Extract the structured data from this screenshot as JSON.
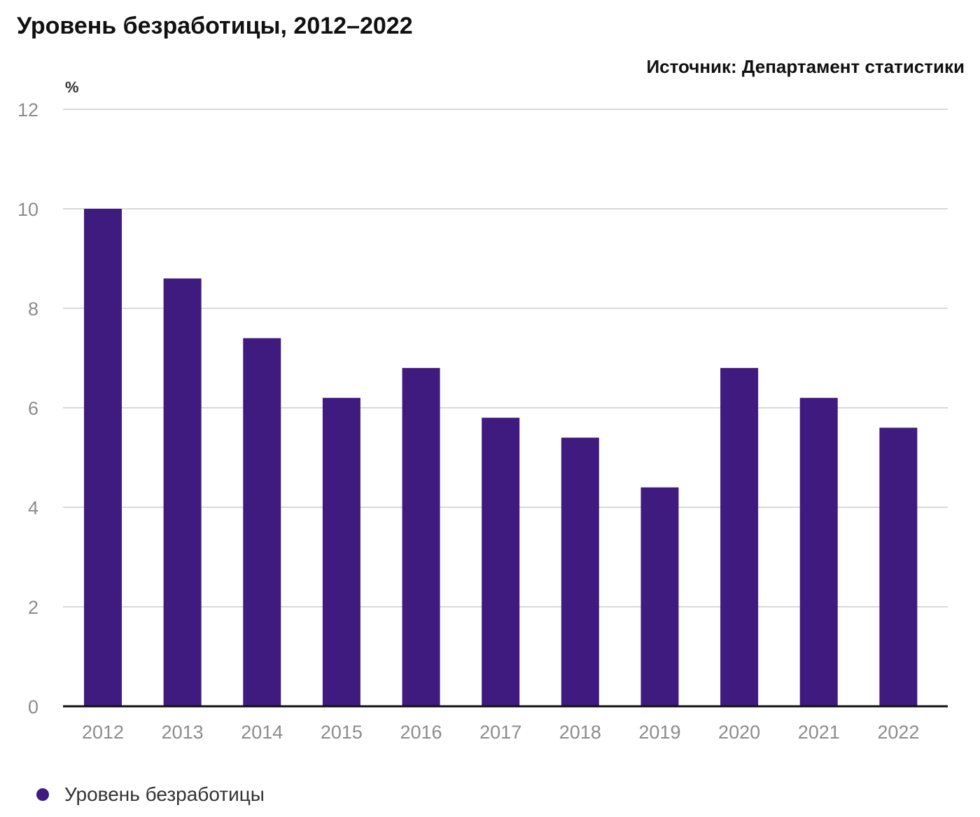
{
  "title": "Уровень безработицы, 2012–2022",
  "source": "Источник: Департамент статистики",
  "colors": {
    "bar": "#3f1a7f",
    "grid": "#d9d9d9",
    "axis": "#111111",
    "tick_text": "#8c8c8c"
  },
  "chart_data": {
    "type": "bar",
    "categories": [
      "2012",
      "2013",
      "2014",
      "2015",
      "2016",
      "2017",
      "2018",
      "2019",
      "2020",
      "2021",
      "2022"
    ],
    "series": [
      {
        "name": "Уровень безработицы",
        "values": [
          10.0,
          8.6,
          7.4,
          6.2,
          6.8,
          5.8,
          5.4,
          4.4,
          6.8,
          6.2,
          5.6
        ]
      }
    ],
    "unit_label": "%",
    "ylim": [
      0,
      12
    ],
    "yticks": [
      0,
      2,
      4,
      6,
      8,
      10,
      12
    ],
    "grid": true,
    "legend_position": "bottom-left"
  }
}
